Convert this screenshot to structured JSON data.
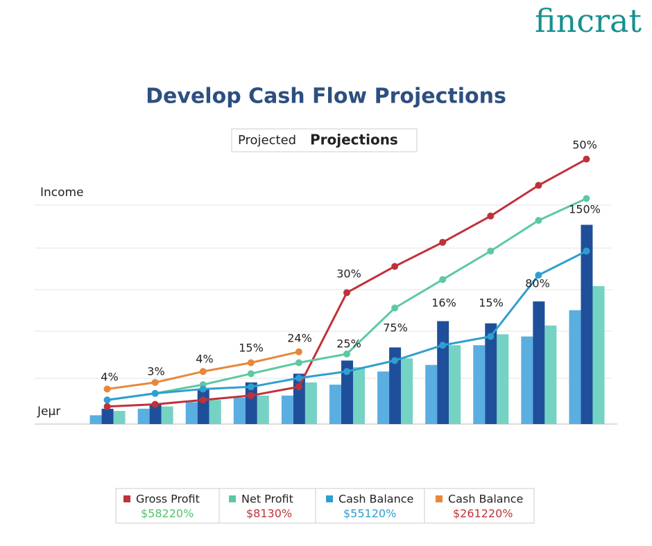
{
  "logo": "fincrat",
  "header": {
    "title": "Develop Cash Flow Projections"
  },
  "chart_data": {
    "type": "bar",
    "title_light": "Projected",
    "title_bold": "Projections",
    "y_label": "Income",
    "x_label": "Jeμr",
    "categories": [
      null,
      null,
      null,
      null,
      null,
      null,
      null,
      null,
      null,
      null,
      null
    ],
    "ylim": [
      0,
      125
    ],
    "bars": [
      {
        "color": "#5aaee0",
        "values": [
          4,
          7,
          10,
          12,
          13,
          18,
          24,
          27,
          36,
          40,
          52
        ]
      },
      {
        "color": "#1f4f9a",
        "values": [
          7,
          9,
          16,
          19,
          23,
          29,
          35,
          47,
          46,
          56,
          91
        ]
      },
      {
        "color": "#74d3c2",
        "values": [
          6,
          8,
          11,
          13,
          19,
          26,
          30,
          36,
          41,
          45,
          63
        ]
      }
    ],
    "series": [
      {
        "name": "Gross Profit",
        "color": "#c0313a",
        "values": [
          8,
          9,
          11,
          13,
          17,
          60,
          72,
          83,
          95,
          109,
          121
        ]
      },
      {
        "name": "Net Profit",
        "color": "#5cc9a0",
        "values": [
          11,
          14,
          18,
          23,
          28,
          32,
          53,
          66,
          79,
          93,
          103
        ]
      },
      {
        "name": "Cash Balance",
        "color": "#2e9fd0",
        "values": [
          11,
          14,
          16,
          17,
          21,
          24,
          29,
          36,
          40,
          68,
          79
        ]
      },
      {
        "name": "Cash Balance",
        "color": "#e8873a",
        "values": [
          16,
          19,
          24,
          28,
          33,
          null,
          null,
          null,
          null,
          null,
          null
        ]
      }
    ],
    "legend_values": [
      "$58220%",
      "$8130%",
      "$55120%",
      "$261220%"
    ],
    "annotations": [
      "4%",
      "3%",
      "4%",
      "15%",
      "24%",
      "30%",
      "25%",
      "75%",
      "16%",
      "15%",
      "80%",
      "150%",
      "50%"
    ]
  }
}
